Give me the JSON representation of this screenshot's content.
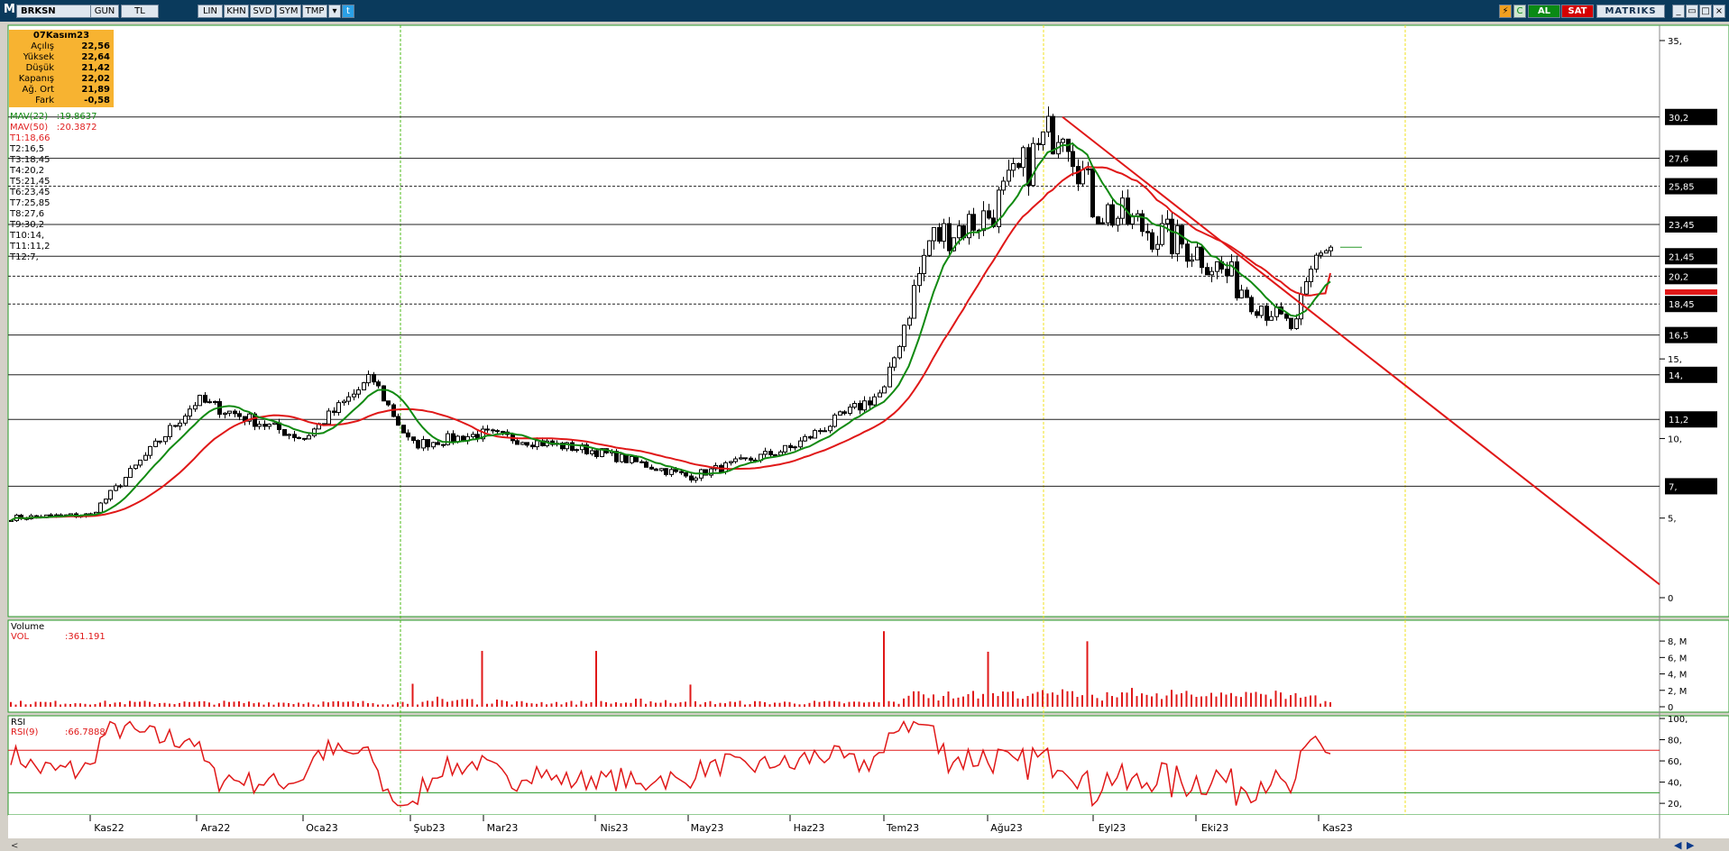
{
  "toolbar": {
    "symbol": "BRKSN",
    "buttons": [
      "GUN",
      "TL",
      "LIN",
      "KHN",
      "SVD",
      "SYM",
      "TMP"
    ],
    "buy": "AL",
    "sell": "SAT",
    "brand": "MATRIKS"
  },
  "info": {
    "date": "07Kasım23",
    "rows": [
      {
        "label": "Açılış",
        "value": "22,56"
      },
      {
        "label": "Yüksek",
        "value": "22,64"
      },
      {
        "label": "Düşük",
        "value": "21,42"
      },
      {
        "label": "Kapanış",
        "value": "22,02"
      },
      {
        "label": "Ağ. Ort",
        "value": "21,89"
      },
      {
        "label": "Fark",
        "value": "-0,58"
      }
    ]
  },
  "indicators": [
    {
      "label": "MAV(22)",
      "value": ":19.8637",
      "color": "#118a11"
    },
    {
      "label": "MAV(50)",
      "value": ":20.3872",
      "color": "#e02020"
    }
  ],
  "levels": [
    {
      "label": "T1:18,66",
      "value": 18.66
    },
    {
      "label": "T2:16,5",
      "value": 16.5
    },
    {
      "label": "T3:18,45",
      "value": 18.45
    },
    {
      "label": "T4:20,2",
      "value": 20.2
    },
    {
      "label": "T5:21,45",
      "value": 21.45
    },
    {
      "label": "T6:23,45",
      "value": 23.45
    },
    {
      "label": "T7:25,85",
      "value": 25.85
    },
    {
      "label": "T8:27,6",
      "value": 27.6
    },
    {
      "label": "T9:30,2",
      "value": 30.2
    },
    {
      "label": "T10:14,",
      "value": 14
    },
    {
      "label": "T11:11,2",
      "value": 11.2
    },
    {
      "label": "T12:7,",
      "value": 7
    }
  ],
  "chart_data": [
    {
      "type": "candlestick",
      "symbol": "BRKSN",
      "x_labels": [
        "Kas22",
        "Ara22",
        "Oca23",
        "Şub23",
        "Mar23",
        "Nis23",
        "May23",
        "Haz23",
        "Tem23",
        "Ağu23",
        "Eyl23",
        "Eki23",
        "Kas23"
      ],
      "y_ticks": [
        "0",
        "5,",
        "7,",
        "10,",
        "11,2",
        "14,",
        "15,",
        "16,5",
        "18,45",
        "20,2",
        "21,45",
        "23,45",
        "25,85",
        "27,6",
        "30,2",
        "35,"
      ],
      "ylim": [
        0,
        35
      ],
      "close_anchors": [
        {
          "x": "Kas22",
          "y": 5.2
        },
        {
          "x": "Ara22",
          "y": 12.4
        },
        {
          "x": "Oca23",
          "y": 10.0
        },
        {
          "x": "Oca23+",
          "y": 13.8
        },
        {
          "x": "Şub23",
          "y": 9.6
        },
        {
          "x": "Mar23",
          "y": 10.3
        },
        {
          "x": "Nis23",
          "y": 9.2
        },
        {
          "x": "May23",
          "y": 7.6
        },
        {
          "x": "Haz23",
          "y": 9.4
        },
        {
          "x": "Tem23",
          "y": 13.0
        },
        {
          "x": "Tem23+",
          "y": 22.5
        },
        {
          "x": "Ağu23",
          "y": 24.0
        },
        {
          "x": "Ağu23+",
          "y": 30.2
        },
        {
          "x": "Eyl23",
          "y": 24.6
        },
        {
          "x": "Eki23",
          "y": 21.8
        },
        {
          "x": "Kas23-",
          "y": 16.8
        },
        {
          "x": "Kas23",
          "y": 22.02
        }
      ],
      "series": [
        {
          "name": "MAV(22)",
          "last": 19.8637
        },
        {
          "name": "MAV(50)",
          "last": 20.3872
        }
      ],
      "horizontal_levels": [
        30.2,
        27.6,
        25.85,
        23.45,
        21.45,
        20.2,
        18.45,
        16.5,
        14,
        11.2,
        7
      ],
      "trendline": {
        "from": {
          "x": "Ağu23+",
          "y": 30.2
        },
        "to": {
          "x": "Kas23",
          "y": 17.6
        }
      },
      "price_labels": [
        "30,2",
        "27,6",
        "25,85",
        "23,45",
        "21,45",
        "20,2",
        "18,45",
        "16,5",
        "14,",
        "11,2",
        "7,"
      ]
    },
    {
      "type": "bar",
      "title": "Volume",
      "series_label": "VOL",
      "value_text": ":361.191",
      "y_ticks": [
        "0",
        "2, M",
        "4, M",
        "6, M",
        "8, M"
      ],
      "ylim": [
        0,
        9
      ],
      "peaks_millions": [
        {
          "x": "Şub23",
          "y": 2.8
        },
        {
          "x": "Mar23",
          "y": 6.8
        },
        {
          "x": "Nis23",
          "y": 6.8
        },
        {
          "x": "May23",
          "y": 2.7
        },
        {
          "x": "Tem23",
          "y": 9.2
        },
        {
          "x": "Ağu23",
          "y": 6.7
        }
      ]
    },
    {
      "type": "line",
      "title": "RSI",
      "series_label": "RSI(9)",
      "value_text": ":66.7888",
      "y_ticks": [
        "20,",
        "40,",
        "60,",
        "80,",
        "100,"
      ],
      "ylim": [
        15,
        100
      ],
      "reference_levels": [
        70,
        30
      ],
      "last": 66.7888
    }
  ]
}
